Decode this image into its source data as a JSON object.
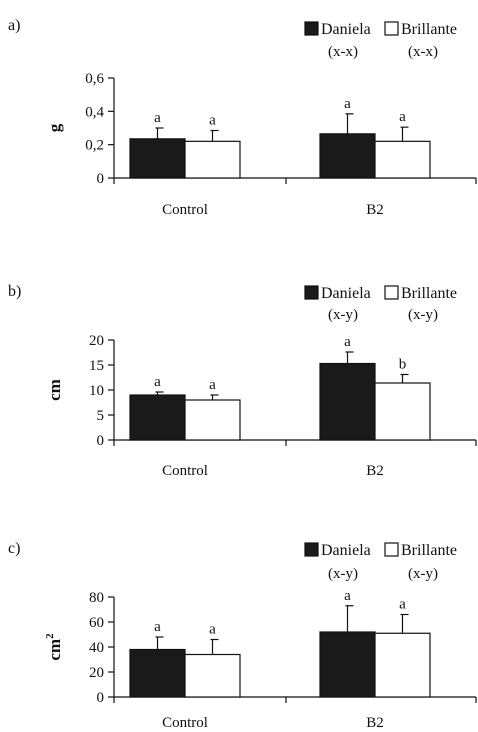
{
  "chart_data": [
    {
      "type": "bar",
      "panel_label": "a)",
      "ylabel": "g",
      "ylabel_sup": "",
      "ylim": [
        0,
        0.6
      ],
      "y_ticks": [
        "0",
        "0,2",
        "0,4",
        "0,6"
      ],
      "y_tick_values": [
        0,
        0.2,
        0.4,
        0.6
      ],
      "categories": [
        "Control",
        "B2"
      ],
      "series": [
        {
          "name": "Daniela",
          "group_label": "(x-x)",
          "color": "#1a1a1a",
          "values": [
            0.235,
            0.265
          ],
          "errors": [
            0.065,
            0.12
          ],
          "letters": [
            "a",
            "a"
          ]
        },
        {
          "name": "Brillante",
          "group_label": "(x-x)",
          "color": "#ffffff",
          "values": [
            0.22,
            0.22
          ],
          "errors": [
            0.065,
            0.085
          ],
          "letters": [
            "a",
            "a"
          ]
        }
      ],
      "legend": "top-right",
      "grid": false
    },
    {
      "type": "bar",
      "panel_label": "b)",
      "ylabel": "cm",
      "ylabel_sup": "",
      "ylim": [
        0,
        20
      ],
      "y_ticks": [
        "0",
        "5",
        "10",
        "15",
        "20"
      ],
      "y_tick_values": [
        0,
        5,
        10,
        15,
        20
      ],
      "categories": [
        "Control",
        "B2"
      ],
      "series": [
        {
          "name": "Daniela",
          "group_label": "(x-y)",
          "color": "#1a1a1a",
          "values": [
            9,
            15.3
          ],
          "errors": [
            0.6,
            2.3
          ],
          "letters": [
            "a",
            "a"
          ]
        },
        {
          "name": "Brillante",
          "group_label": "(x-y)",
          "color": "#ffffff",
          "values": [
            8,
            11.4
          ],
          "errors": [
            1.0,
            1.7
          ],
          "letters": [
            "a",
            "b"
          ]
        }
      ],
      "legend": "top-right",
      "grid": false
    },
    {
      "type": "bar",
      "panel_label": "c)",
      "ylabel": "cm",
      "ylabel_sup": "2",
      "ylim": [
        0,
        80
      ],
      "y_ticks": [
        "0",
        "20",
        "40",
        "60",
        "80"
      ],
      "y_tick_values": [
        0,
        20,
        40,
        60,
        80
      ],
      "categories": [
        "Control",
        "B2"
      ],
      "series": [
        {
          "name": "Daniela",
          "group_label": "(x-y)",
          "color": "#1a1a1a",
          "values": [
            38,
            52
          ],
          "errors": [
            10,
            21
          ],
          "letters": [
            "a",
            "a"
          ]
        },
        {
          "name": "Brillante",
          "group_label": "(x-y)",
          "color": "#ffffff",
          "values": [
            34,
            51
          ],
          "errors": [
            12,
            15
          ],
          "letters": [
            "a",
            "a"
          ]
        }
      ],
      "legend": "top-right",
      "grid": false
    }
  ]
}
